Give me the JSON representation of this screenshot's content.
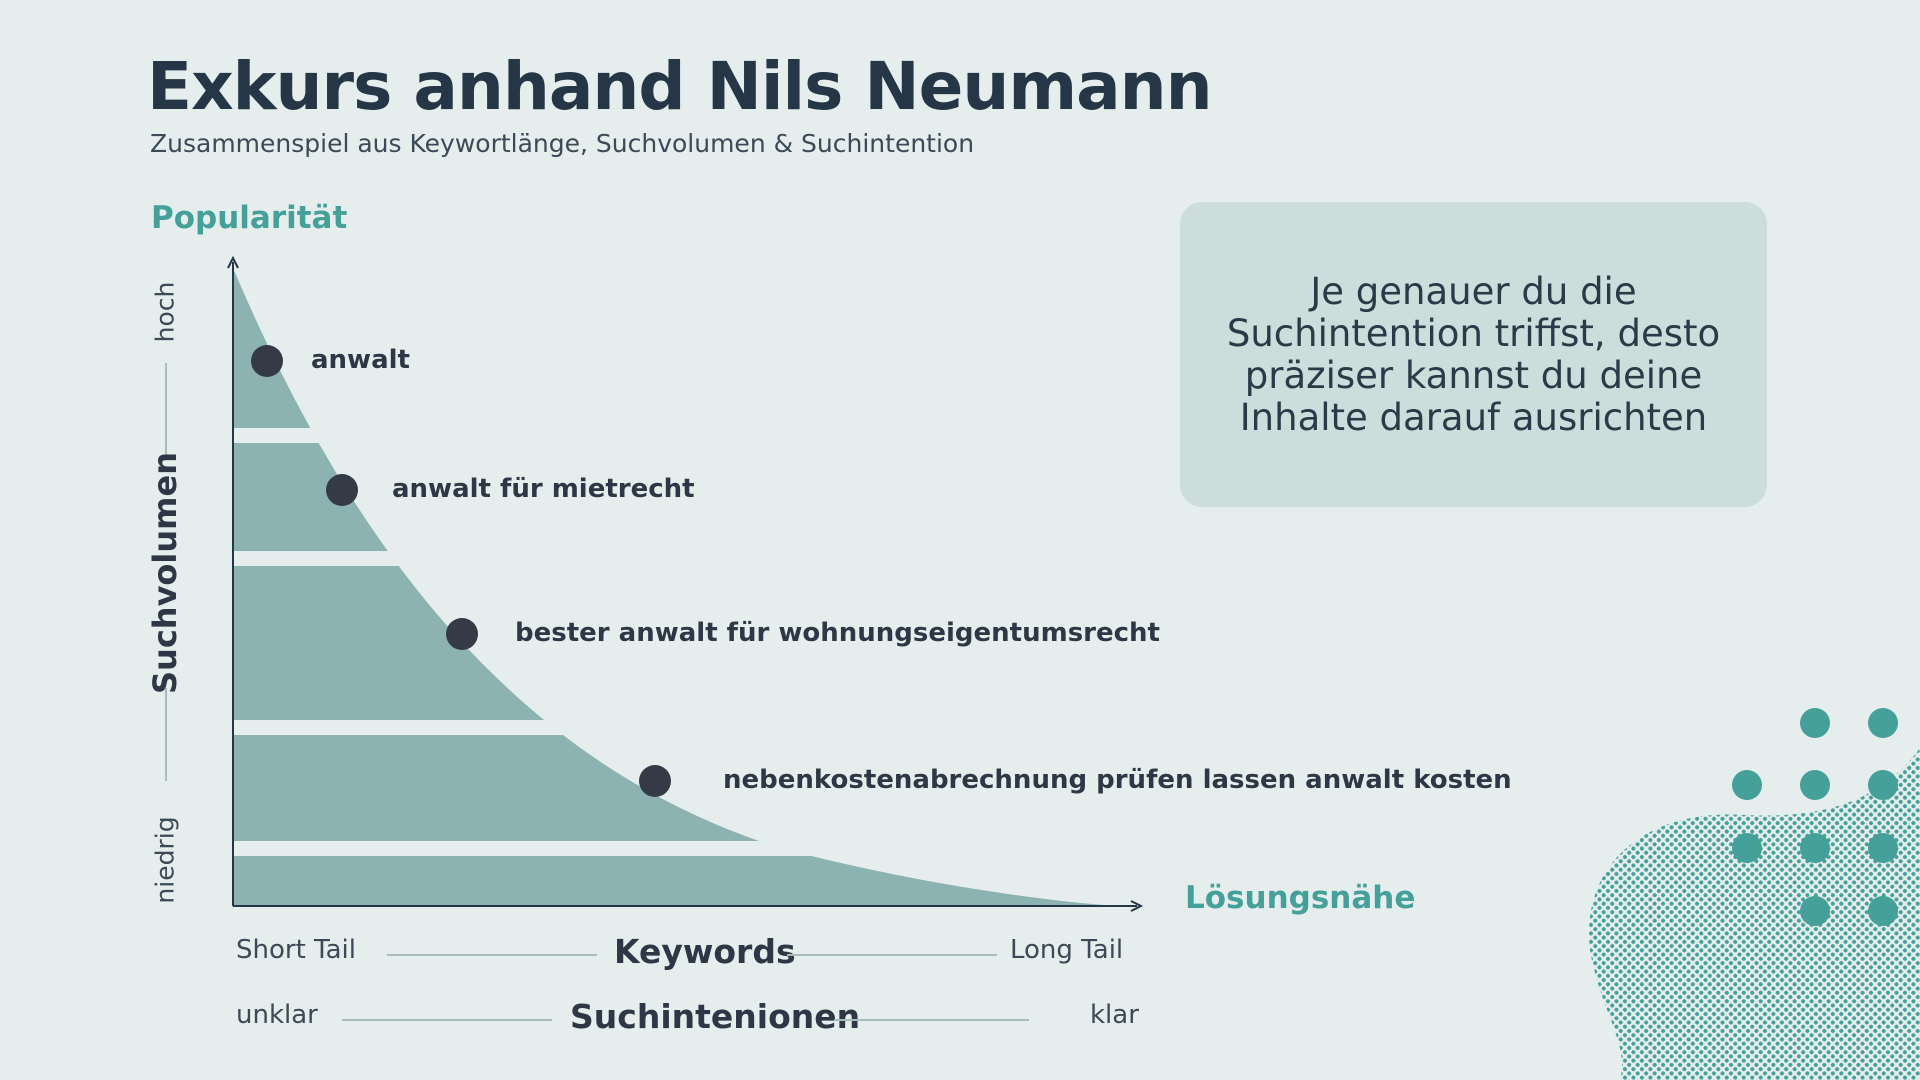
{
  "title": "Exkurs anhand Nils Neumann",
  "subtitle": "Zusammenspiel aus Keywortlänge, Suchvolumen & Suchintention",
  "y_axis": {
    "title": "Popularität",
    "rotated_label": "Suchvolumen",
    "high_label": "hoch",
    "low_label": "niedrig"
  },
  "x_axis": {
    "title": "Lösungsnähe"
  },
  "keywords_scale": {
    "left": "Short Tail",
    "center": "Keywords",
    "right": "Long Tail"
  },
  "intent_scale": {
    "left": "unklar",
    "center": "Suchintenionen",
    "right": "klar"
  },
  "keywords": [
    {
      "label": "anwalt"
    },
    {
      "label": "anwalt für mietrecht"
    },
    {
      "label": "bester anwalt für wohnungseigentumsrecht"
    },
    {
      "label": "nebenkostenabrechnung prüfen lassen anwalt kosten"
    }
  ],
  "info_text": "Je genauer du die Suchintention triffst, desto präziser kannst du deine Inhalte darauf ausrichten",
  "colors": {
    "background": "#e5eeed",
    "curve_fill": "#8cb3b1",
    "accent": "#45a09a",
    "dark_text": "#253746",
    "dot": "#353a47",
    "info_box": "#ccdddc"
  }
}
